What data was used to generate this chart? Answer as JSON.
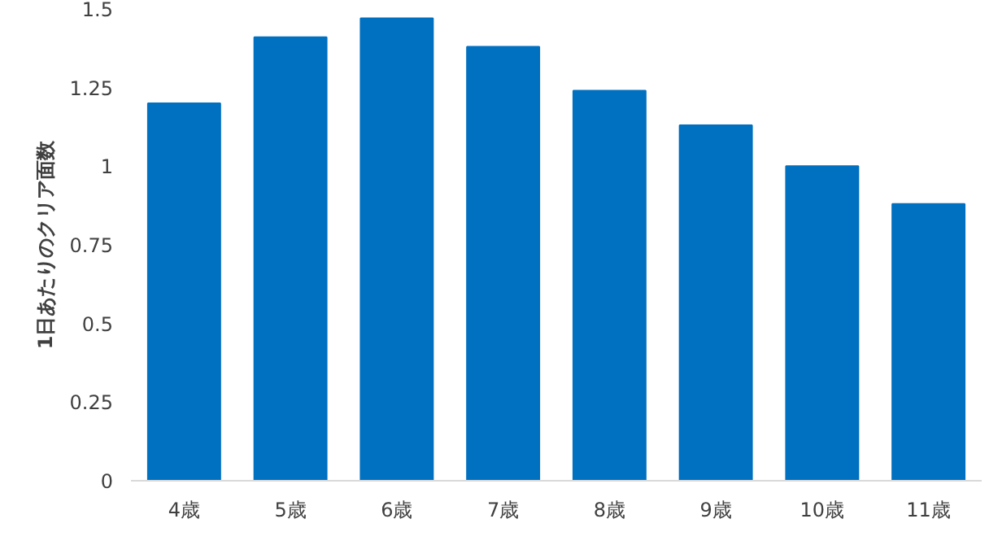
{
  "chart_data": {
    "type": "bar",
    "ylabel": "1日あたりのクリア面数",
    "categories": [
      "4歳",
      "5歳",
      "6歳",
      "7歳",
      "8歳",
      "9歳",
      "10歳",
      "11歳"
    ],
    "values": [
      1.2,
      1.41,
      1.47,
      1.38,
      1.24,
      1.13,
      1.0,
      0.88
    ],
    "color": "#0070c0",
    "ylim": [
      0,
      1.5
    ],
    "yticks": [
      0,
      0.25,
      0.5,
      0.75,
      1,
      1.25,
      1.5
    ],
    "grid": false
  }
}
